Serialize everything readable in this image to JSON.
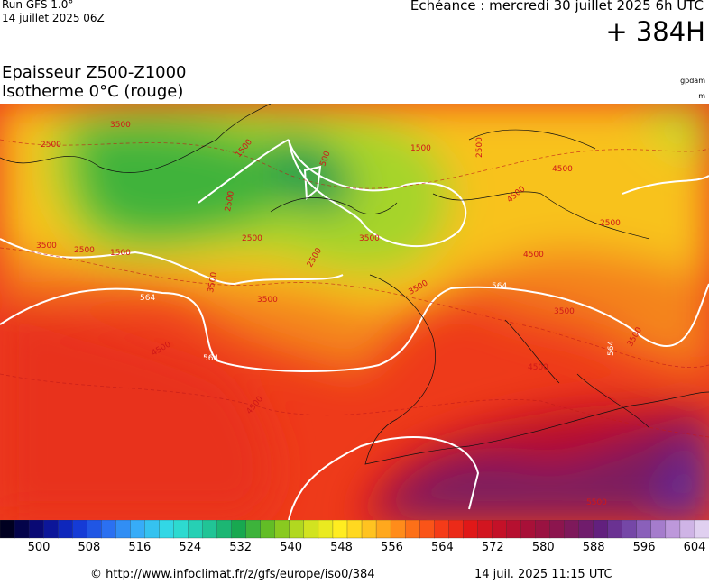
{
  "header": {
    "run": "Run GFS 1.0°",
    "run_date": "14 juillet 2025 06Z",
    "echeance": "Echéance : mercredi 30 juillet 2025 6h UTC",
    "lead": "+ 384H"
  },
  "titles": {
    "line1": "Epaisseur Z500-Z1000",
    "line2": "Isotherme 0°C (rouge)",
    "unit1": "gpdam",
    "unit2": "m"
  },
  "map": {
    "contour_labels": [
      "2500",
      "3500",
      "1500",
      "500",
      "1500",
      "2500",
      "2500",
      "3500",
      "2500",
      "1500",
      "2500",
      "3500",
      "3500",
      "564",
      "3500",
      "4500",
      "564",
      "3500",
      "4500",
      "2500",
      "2500",
      "3500",
      "564",
      "564",
      "3500",
      "4500",
      "4500",
      "4500",
      "4500",
      "5500"
    ]
  },
  "colorbar": {
    "labels": [
      "500",
      "508",
      "516",
      "524",
      "532",
      "540",
      "548",
      "556",
      "564",
      "572",
      "580",
      "588",
      "596",
      "604"
    ]
  },
  "footer": {
    "url": "© http://www.infoclimat.fr/z/gfs/europe/iso0/384",
    "timestamp": "14 juil. 2025 11:15 UTC"
  }
}
